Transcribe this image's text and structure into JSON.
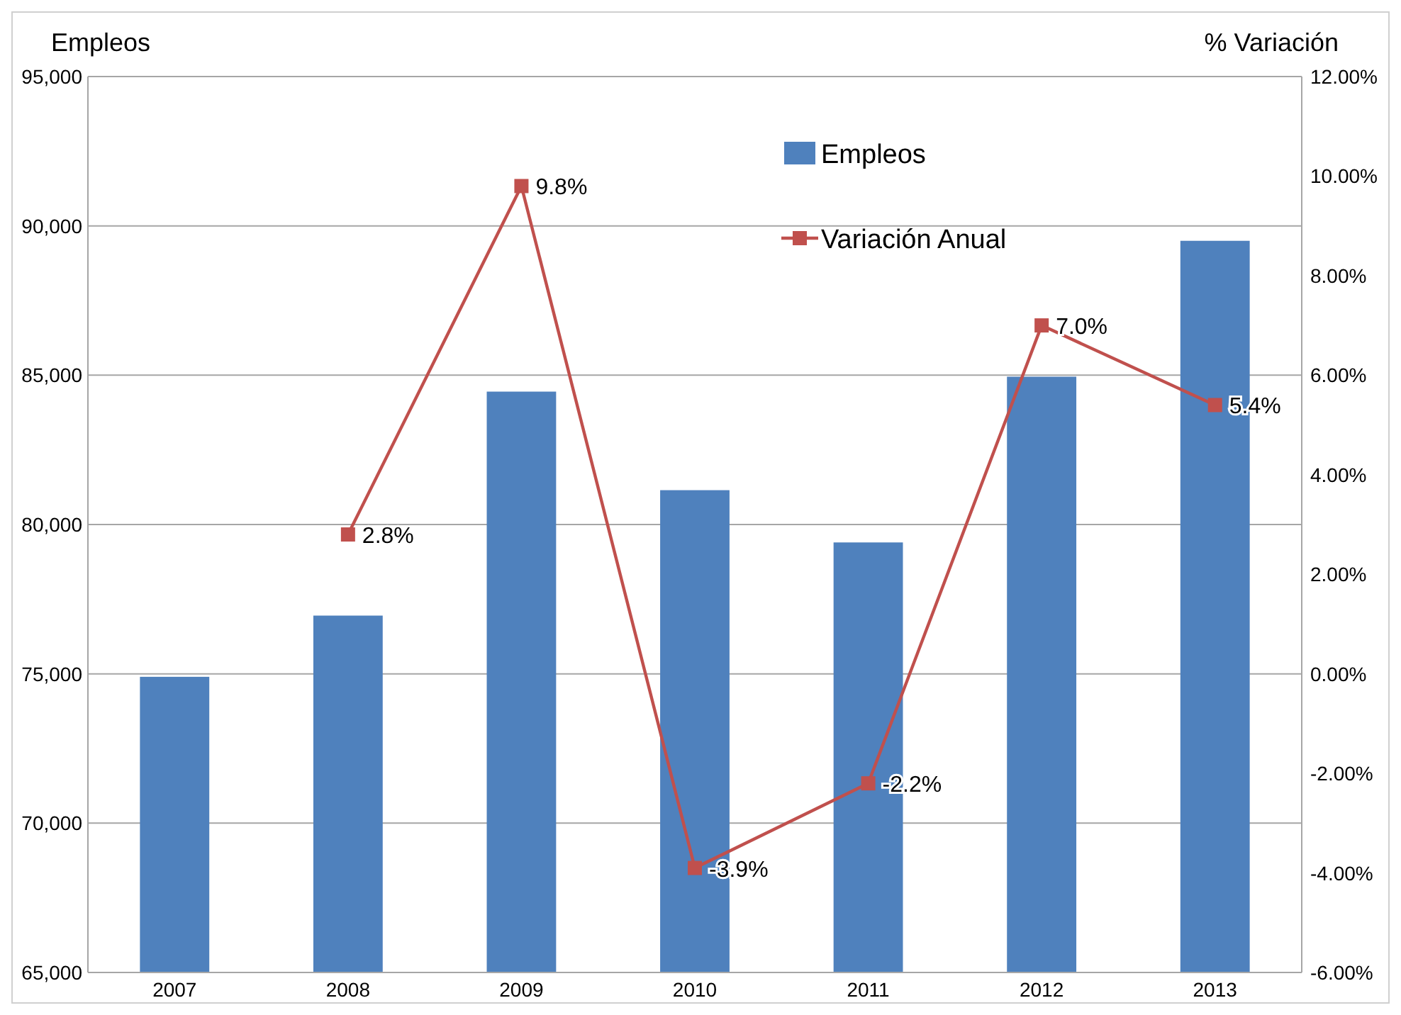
{
  "chart_data": {
    "type": "bar",
    "ylabel": "Empleos",
    "y2label": "% Variación",
    "categories": [
      "2007",
      "2008",
      "2009",
      "2010",
      "2011",
      "2012",
      "2013"
    ],
    "series": [
      {
        "name": "Empleos",
        "color": "#4f81bd",
        "values": [
          74900,
          76950,
          84450,
          81150,
          79400,
          84950,
          89500
        ]
      },
      {
        "name": "Variación Anual",
        "type": "line",
        "axis": "y2",
        "color": "#c0504d",
        "marker": "square",
        "values": [
          null,
          2.8,
          9.8,
          -3.9,
          -2.2,
          7.0,
          5.4
        ],
        "value_labels": [
          null,
          "2.8%",
          "9.8%",
          "-3.9%",
          "-2.2%",
          "7.0%",
          "5.4%"
        ]
      }
    ],
    "ylim": [
      65000,
      95000
    ],
    "yticks": [
      {
        "value": 65000,
        "label": "65,000"
      },
      {
        "value": 70000,
        "label": "70,000"
      },
      {
        "value": 75000,
        "label": "75,000"
      },
      {
        "value": 80000,
        "label": "80,000"
      },
      {
        "value": 85000,
        "label": "85,000"
      },
      {
        "value": 90000,
        "label": "90,000"
      },
      {
        "value": 95000,
        "label": "95,000"
      }
    ],
    "y2lim": [
      -6,
      12
    ],
    "y2ticks": [
      {
        "value": -6,
        "label": "-6.00%"
      },
      {
        "value": -4,
        "label": "-4.00%"
      },
      {
        "value": -2,
        "label": "-2.00%"
      },
      {
        "value": 0,
        "label": "0.00%"
      },
      {
        "value": 2,
        "label": "2.00%"
      },
      {
        "value": 4,
        "label": "4.00%"
      },
      {
        "value": 6,
        "label": "6.00%"
      },
      {
        "value": 8,
        "label": "8.00%"
      },
      {
        "value": 10,
        "label": "10.00%"
      },
      {
        "value": 12,
        "label": "12.00%"
      }
    ],
    "grid": "y",
    "legend": "top right"
  }
}
